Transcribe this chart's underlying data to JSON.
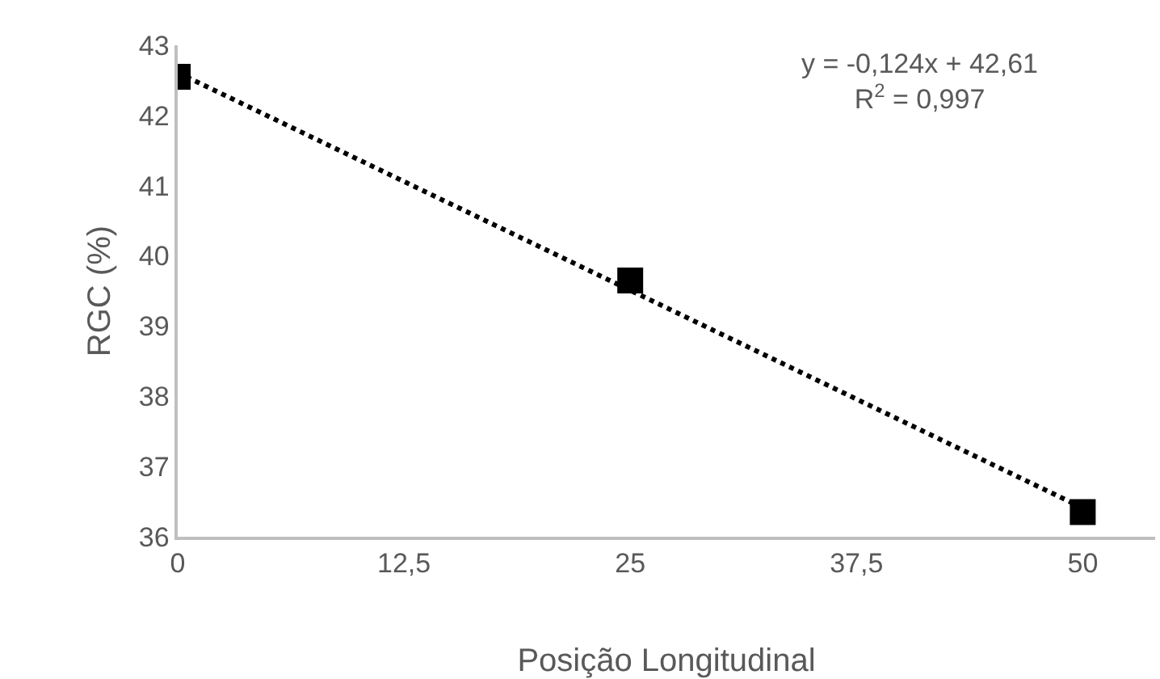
{
  "chart_data": {
    "type": "scatter",
    "xlabel": "Posição Longitudinal",
    "ylabel": "RGC (%)",
    "xlim": [
      0,
      54
    ],
    "xticks": [
      0,
      {
        "value": 12.5,
        "label": "12,5"
      },
      25,
      {
        "value": 37.5,
        "label": "37,5"
      },
      50
    ],
    "ylim": [
      36,
      43
    ],
    "yticks": [
      36,
      37,
      38,
      39,
      40,
      41,
      42,
      43
    ],
    "series": [
      {
        "color": "#000000",
        "marker": "square",
        "x": [
          0,
          25,
          50
        ],
        "values": [
          42.55,
          39.65,
          36.35
        ]
      },
      {
        "type": "line",
        "color": "#000000",
        "line_style": "dotted",
        "marker": "none",
        "x": [
          0,
          50
        ],
        "values": [
          42.61,
          36.41
        ]
      }
    ],
    "annotations": [
      "y = -0,124x + 42,61",
      "R$^{2}$ = 0,997"
    ]
  }
}
